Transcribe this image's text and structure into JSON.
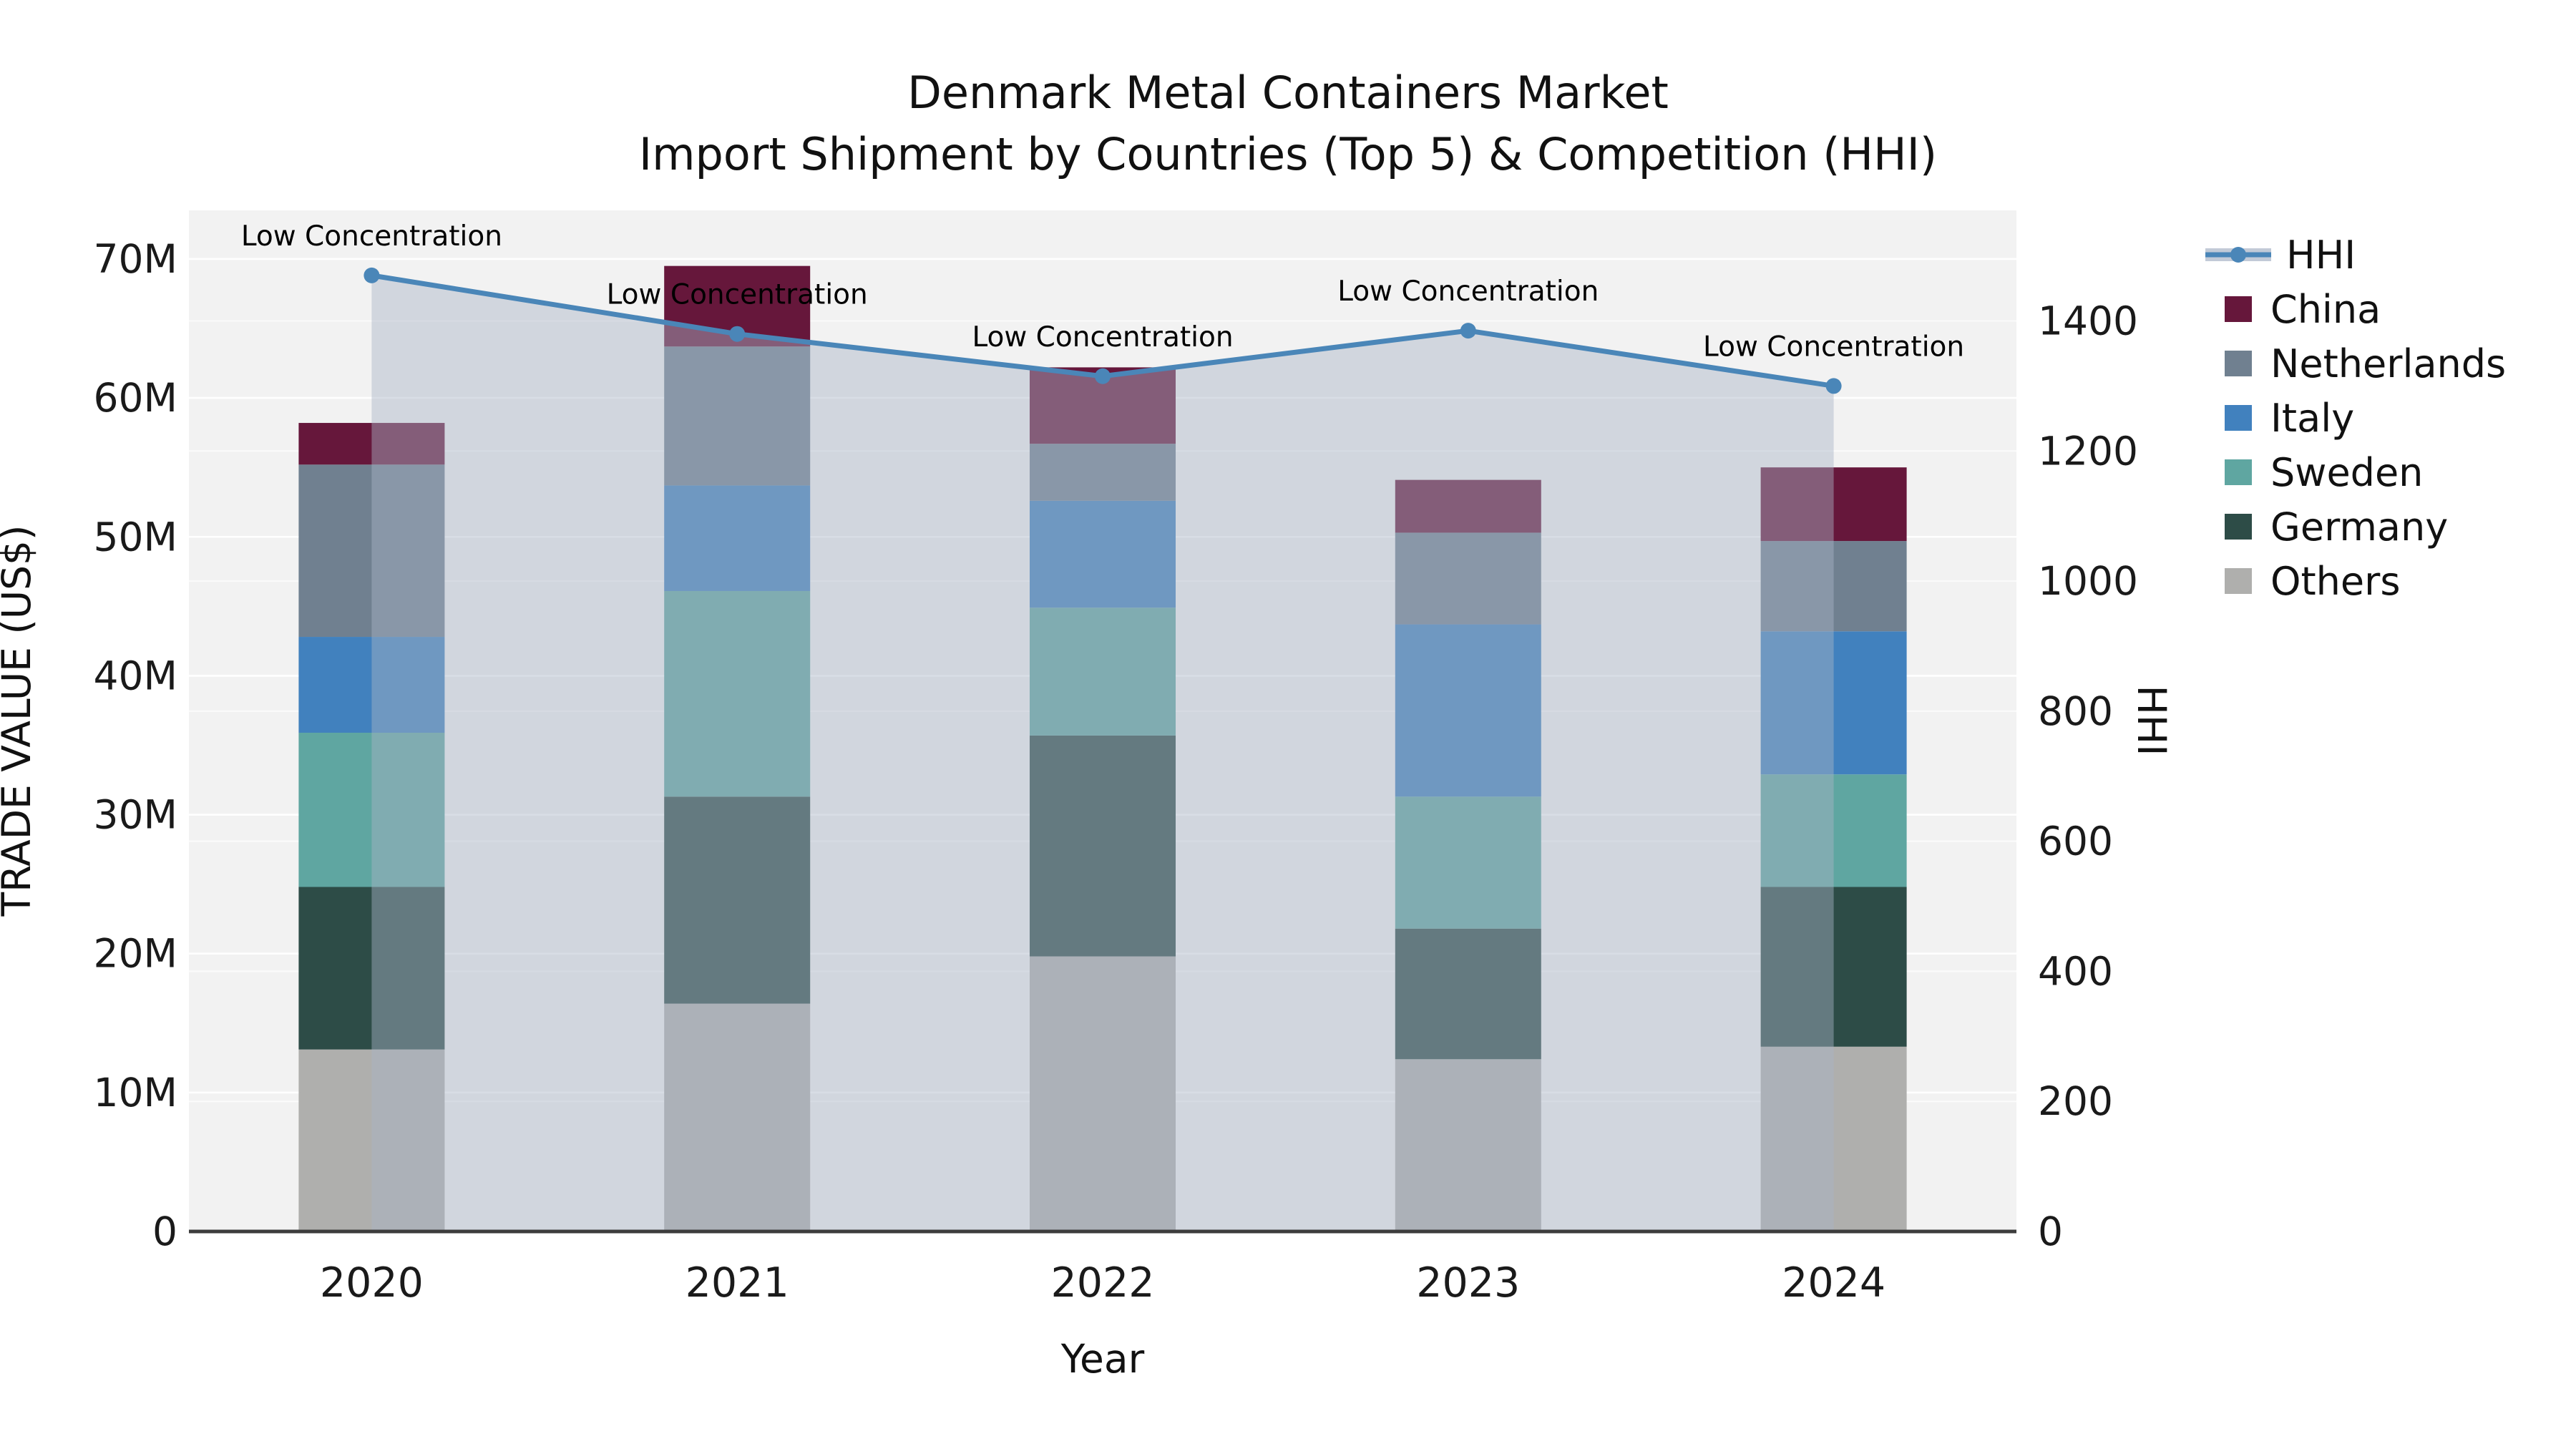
{
  "title": {
    "line1": "Denmark Metal Containers Market",
    "line2": "Import Shipment by Countries (Top 5) & Competition (HHI)"
  },
  "axes": {
    "y_left_title": "TRADE VALUE (US$)",
    "y_right_title": "HHI",
    "x_title": "Year",
    "y_left_ticks": [
      {
        "label": "0",
        "value": 0
      },
      {
        "label": "10M",
        "value": 10
      },
      {
        "label": "20M",
        "value": 20
      },
      {
        "label": "30M",
        "value": 30
      },
      {
        "label": "40M",
        "value": 40
      },
      {
        "label": "50M",
        "value": 50
      },
      {
        "label": "60M",
        "value": 60
      },
      {
        "label": "70M",
        "value": 70
      }
    ],
    "y_right_ticks": [
      {
        "label": "0",
        "value": 0
      },
      {
        "label": "200",
        "value": 200
      },
      {
        "label": "400",
        "value": 400
      },
      {
        "label": "600",
        "value": 600
      },
      {
        "label": "800",
        "value": 800
      },
      {
        "label": "1000",
        "value": 1000
      },
      {
        "label": "1200",
        "value": 1200
      },
      {
        "label": "1400",
        "value": 1400
      }
    ]
  },
  "chart_data": {
    "type": "bar",
    "subtype": "stacked bars with secondary-axis line + shaded area",
    "categories": [
      "2020",
      "2021",
      "2022",
      "2023",
      "2024"
    ],
    "bar_value_unit": "USD millions (trade value)",
    "series": [
      {
        "name": "Others",
        "color": "#AFAFAD",
        "values": [
          13.1,
          16.4,
          19.8,
          12.4,
          13.3
        ]
      },
      {
        "name": "Germany",
        "color": "#2D4C47",
        "values": [
          11.7,
          14.9,
          15.9,
          9.4,
          11.5
        ]
      },
      {
        "name": "Sweden",
        "color": "#5FA6A1",
        "values": [
          11.1,
          14.8,
          9.2,
          9.5,
          8.1
        ]
      },
      {
        "name": "Italy",
        "color": "#4181BE",
        "values": [
          6.9,
          7.6,
          7.7,
          12.4,
          10.3
        ]
      },
      {
        "name": "Netherlands",
        "color": "#708090",
        "values": [
          12.4,
          10.0,
          4.1,
          6.6,
          6.5
        ]
      },
      {
        "name": "China",
        "color": "#66173B",
        "values": [
          3.0,
          5.8,
          5.5,
          3.8,
          5.3
        ]
      }
    ],
    "stack_totals": [
      58.2,
      69.5,
      62.2,
      54.1,
      55.0
    ],
    "line": {
      "name": "HHI",
      "color": "#4A86B8",
      "fill_color": "rgba(168,180,198,0.45)",
      "values": [
        1470,
        1380,
        1315,
        1385,
        1300
      ],
      "point_label": "Low Concentration"
    },
    "ylim_left": [
      0,
      73.5
    ],
    "ylim_right": [
      0,
      1570
    ],
    "grid": true,
    "plot_bg": "#F2F2F2",
    "grid_color": "#FFFFFF",
    "axis_line_color": "#3C3C3C",
    "legend_position": "right of plot, vertical",
    "legend_order": [
      "HHI",
      "China",
      "Netherlands",
      "Italy",
      "Sweden",
      "Germany",
      "Others"
    ]
  }
}
